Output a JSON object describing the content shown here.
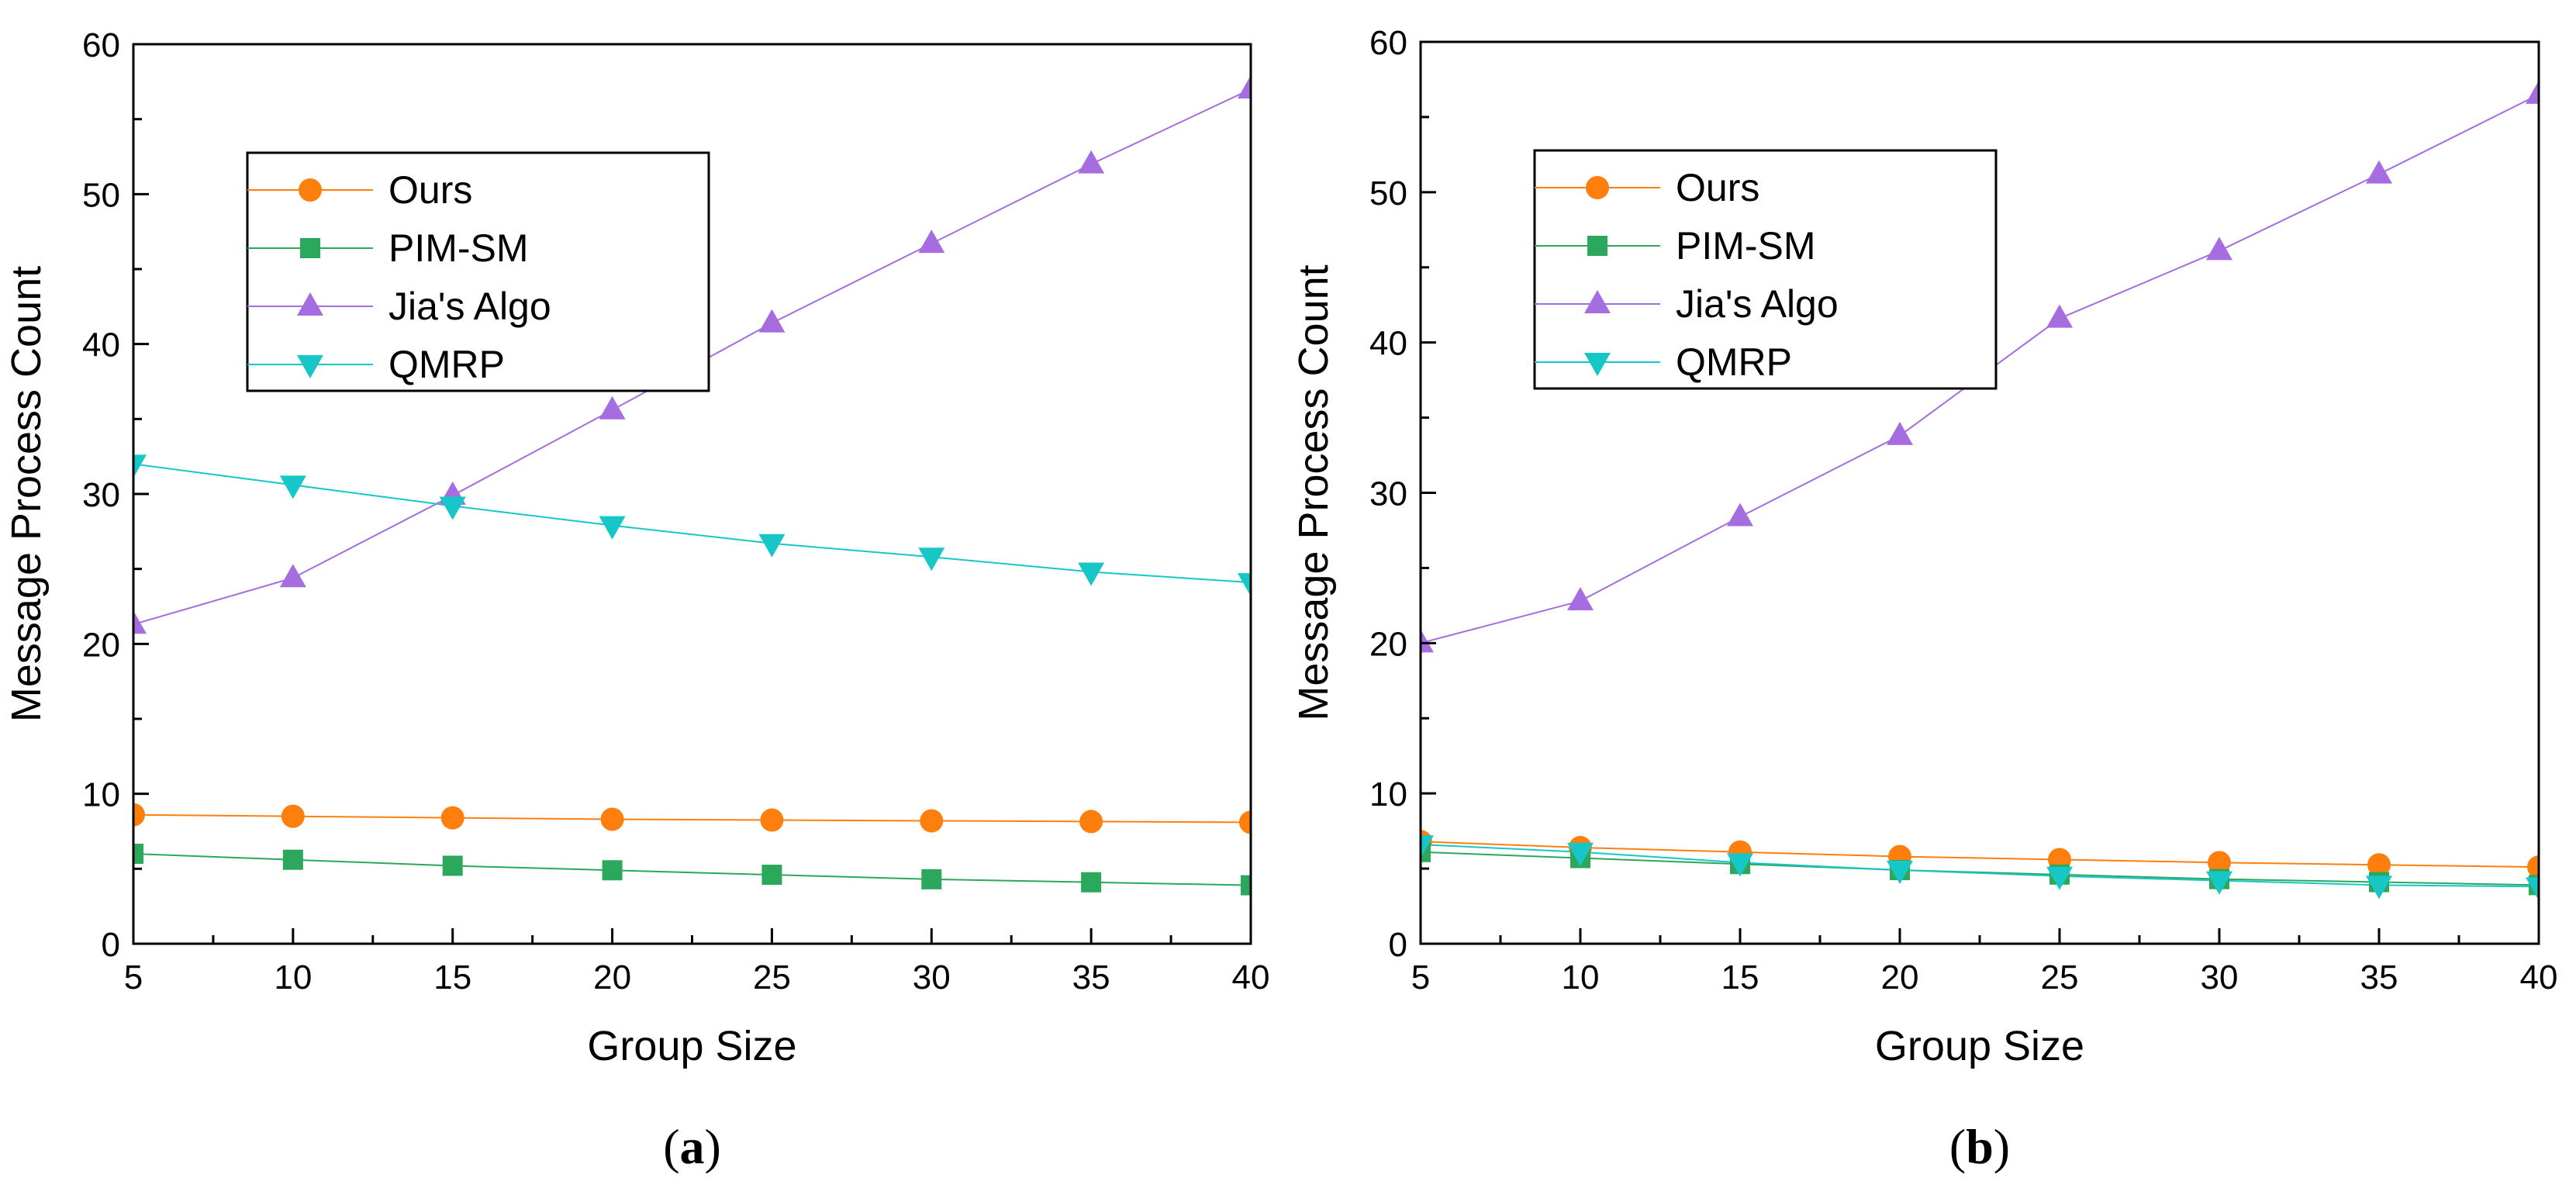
{
  "chart_data": [
    {
      "panel": "(a)",
      "panel_letter": "a",
      "type": "line",
      "xlabel": "Group Size",
      "ylabel": "Message Process Count",
      "xlim": [
        5,
        40
      ],
      "ylim": [
        0,
        60
      ],
      "x_ticks": [
        5,
        10,
        15,
        20,
        25,
        30,
        35,
        40
      ],
      "y_ticks": [
        0,
        10,
        20,
        30,
        40,
        50,
        60
      ],
      "grid": false,
      "legend_position": "upper-left",
      "x": [
        5,
        10,
        15,
        20,
        25,
        30,
        35,
        40
      ],
      "series": [
        {
          "name": "Ours",
          "marker": "circle",
          "color": "#FF7F0E",
          "values": [
            8.6,
            8.5,
            8.4,
            8.3,
            8.25,
            8.2,
            8.15,
            8.1
          ]
        },
        {
          "name": "PIM-SM",
          "marker": "square",
          "color": "#2CA85C",
          "values": [
            6.0,
            5.6,
            5.2,
            4.9,
            4.6,
            4.3,
            4.1,
            3.9
          ]
        },
        {
          "name": "Jia's Algo",
          "marker": "triangle-up",
          "color": "#A56DE0",
          "values": [
            21.3,
            24.4,
            29.9,
            35.6,
            41.4,
            46.7,
            52.0,
            57.0
          ]
        },
        {
          "name": "QMRP",
          "marker": "triangle-down",
          "color": "#17C7C7",
          "values": [
            32.0,
            30.6,
            29.2,
            27.9,
            26.7,
            25.8,
            24.8,
            24.1
          ]
        }
      ]
    },
    {
      "panel": "(b)",
      "panel_letter": "b",
      "type": "line",
      "xlabel": "Group Size",
      "ylabel": "Message Process Count",
      "xlim": [
        5,
        40
      ],
      "ylim": [
        0,
        60
      ],
      "x_ticks": [
        5,
        10,
        15,
        20,
        25,
        30,
        35,
        40
      ],
      "y_ticks": [
        0,
        10,
        20,
        30,
        40,
        50,
        60
      ],
      "grid": false,
      "legend_position": "upper-left",
      "x": [
        5,
        10,
        15,
        20,
        25,
        30,
        35,
        40
      ],
      "series": [
        {
          "name": "Ours",
          "marker": "circle",
          "color": "#FF7F0E",
          "values": [
            6.8,
            6.4,
            6.1,
            5.8,
            5.6,
            5.4,
            5.25,
            5.1
          ]
        },
        {
          "name": "PIM-SM",
          "marker": "square",
          "color": "#2CA85C",
          "values": [
            6.1,
            5.7,
            5.3,
            4.9,
            4.6,
            4.3,
            4.1,
            3.9
          ]
        },
        {
          "name": "Jia's Algo",
          "marker": "triangle-up",
          "color": "#A56DE0",
          "values": [
            20.0,
            22.8,
            28.4,
            33.8,
            41.6,
            46.1,
            51.2,
            56.5
          ]
        },
        {
          "name": "QMRP",
          "marker": "triangle-down",
          "color": "#17C7C7",
          "values": [
            6.6,
            6.1,
            5.4,
            4.9,
            4.5,
            4.2,
            3.9,
            3.8
          ]
        }
      ]
    }
  ]
}
